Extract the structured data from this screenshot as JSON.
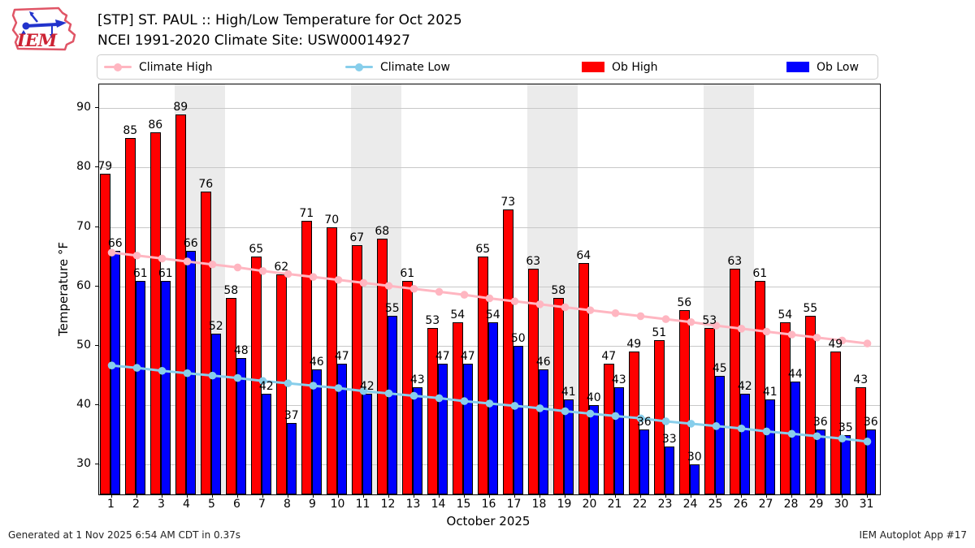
{
  "header": {
    "title_line1": "[STP] ST. PAUL :: High/Low Temperature for Oct 2025",
    "title_line2": "NCEI 1991-2020 Climate Site: USW00014927",
    "logo_text": "IEM"
  },
  "legend": {
    "items": [
      {
        "label": "Climate High",
        "swatch": "line",
        "color": "#ffb6c1"
      },
      {
        "label": "Climate Low",
        "swatch": "line",
        "color": "#87ceeb"
      },
      {
        "label": "Ob High",
        "swatch": "patch",
        "color": "#ff0000"
      },
      {
        "label": "Ob Low",
        "swatch": "patch",
        "color": "#0000ff"
      }
    ]
  },
  "axes": {
    "xlabel": "October 2025",
    "ylabel": "Temperature °F"
  },
  "footer": {
    "left": "Generated at 1 Nov 2025 6:54 AM CDT in 0.37s",
    "right": "IEM Autoplot App #17"
  },
  "chart_data": {
    "type": "bar",
    "title": "[STP] ST. PAUL :: High/Low Temperature for Oct 2025",
    "subtitle": "NCEI 1991-2020 Climate Site: USW00014927",
    "xlabel": "October 2025",
    "ylabel": "Temperature °F",
    "ylim": [
      25,
      94
    ],
    "yticks": [
      30,
      40,
      50,
      60,
      70,
      80,
      90
    ],
    "grid": "horizontal",
    "legend_position": "top",
    "x": [
      1,
      2,
      3,
      4,
      5,
      6,
      7,
      8,
      9,
      10,
      11,
      12,
      13,
      14,
      15,
      16,
      17,
      18,
      19,
      20,
      21,
      22,
      23,
      24,
      25,
      26,
      27,
      28,
      29,
      30,
      31
    ],
    "weekend_bands": [
      [
        4,
        5
      ],
      [
        11,
        12
      ],
      [
        18,
        19
      ],
      [
        25,
        26
      ]
    ],
    "series": [
      {
        "name": "Ob High",
        "type": "bar",
        "color": "#ff0000",
        "values": [
          79,
          85,
          86,
          89,
          76,
          58,
          65,
          62,
          71,
          70,
          67,
          68,
          61,
          53,
          54,
          65,
          73,
          63,
          58,
          64,
          47,
          49,
          51,
          56,
          53,
          63,
          61,
          54,
          55,
          49,
          43
        ]
      },
      {
        "name": "Ob Low",
        "type": "bar",
        "color": "#0000ff",
        "values": [
          66,
          61,
          61,
          66,
          52,
          48,
          42,
          37,
          46,
          47,
          42,
          55,
          43,
          47,
          47,
          54,
          50,
          46,
          41,
          40,
          43,
          36,
          33,
          30,
          45,
          42,
          41,
          44,
          36,
          35,
          36
        ]
      },
      {
        "name": "Climate High",
        "type": "line",
        "color": "#ffb6c1",
        "values": [
          65.7,
          65.2,
          64.7,
          64.2,
          63.7,
          63.2,
          62.6,
          62.1,
          61.6,
          61.1,
          60.6,
          60.1,
          59.6,
          59.1,
          58.6,
          58.0,
          57.5,
          57.0,
          56.5,
          56.0,
          55.5,
          55.0,
          54.5,
          54.0,
          53.4,
          52.9,
          52.4,
          51.9,
          51.4,
          50.9,
          50.4
        ]
      },
      {
        "name": "Climate Low",
        "type": "line",
        "color": "#87ceeb",
        "values": [
          46.7,
          46.3,
          45.8,
          45.4,
          45.0,
          44.6,
          44.1,
          43.7,
          43.3,
          42.9,
          42.4,
          42.0,
          41.6,
          41.2,
          40.7,
          40.3,
          39.9,
          39.5,
          39.0,
          38.6,
          38.2,
          37.8,
          37.3,
          36.9,
          36.5,
          36.1,
          35.6,
          35.2,
          34.8,
          34.4,
          33.9
        ]
      }
    ]
  }
}
